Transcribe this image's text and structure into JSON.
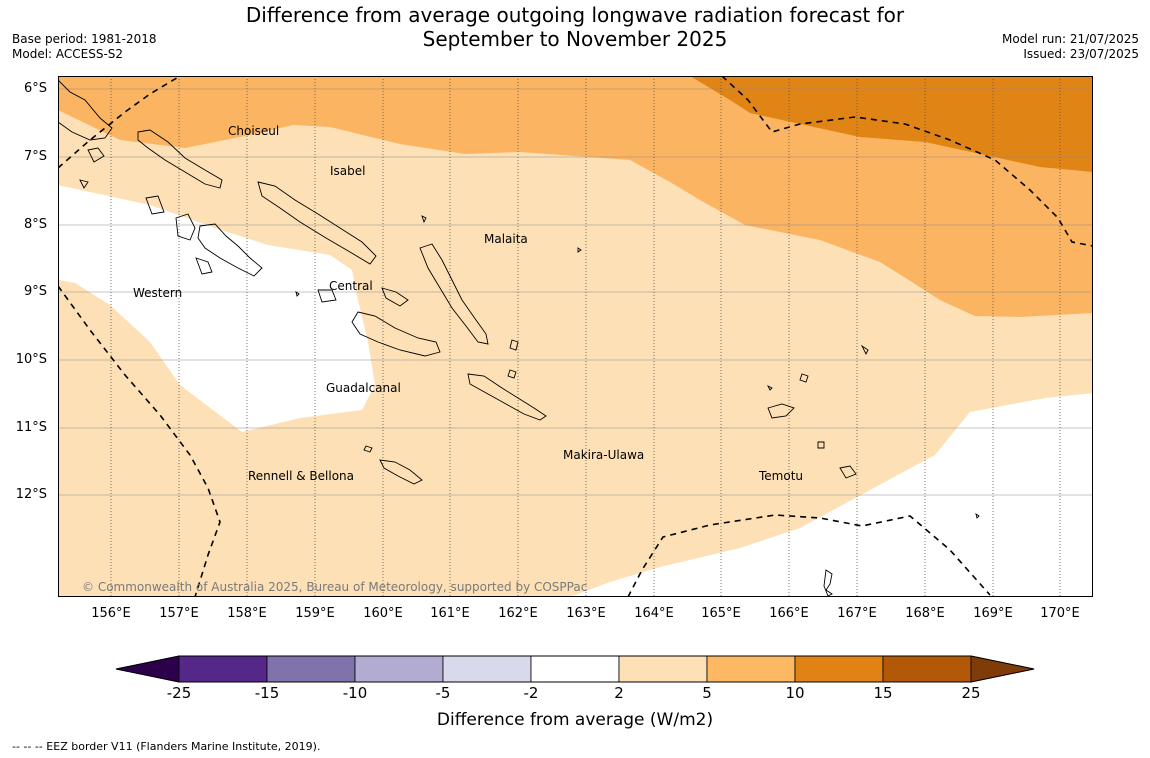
{
  "header": {
    "title_line1": "Difference from average outgoing longwave radiation forecast for",
    "title_line2": "September to November 2025",
    "base_period": "Base period: 1981-2018",
    "model": "Model: ACCESS-S2",
    "model_run": "Model run: 21/07/2025",
    "issued": "Issued: 23/07/2025"
  },
  "map": {
    "latitude_labels": [
      "6°S",
      "7°S",
      "8°S",
      "9°S",
      "10°S",
      "11°S",
      "12°S"
    ],
    "longitude_labels": [
      "156°E",
      "157°E",
      "158°E",
      "159°E",
      "160°E",
      "161°E",
      "162°E",
      "163°E",
      "164°E",
      "165°E",
      "166°E",
      "167°E",
      "168°E",
      "169°E",
      "170°E"
    ],
    "regions": [
      "Choiseul",
      "Isabel",
      "Malaita",
      "Western",
      "Central",
      "Guadalcanal",
      "Makira-Ulawa",
      "Rennell & Bellona",
      "Temotu"
    ],
    "copyright": "© Commonwealth of Australia 2025, Bureau of Meteorology, supported by COSPPac",
    "colors": {
      "band_2_5": "#fde0b5",
      "band_5_10": "#fbb462",
      "band_10_15": "#e08416",
      "neutral": "#ffffff"
    }
  },
  "colorbar": {
    "ticks": [
      "-25",
      "-15",
      "-10",
      "-5",
      "-2",
      "2",
      "5",
      "10",
      "15",
      "25"
    ],
    "colors": [
      "#2d004b",
      "#542788",
      "#8073ac",
      "#b2abd2",
      "#d8daeb",
      "#ffffff",
      "#fee0b6",
      "#fdb863",
      "#e08214",
      "#b35806",
      "#7f3b08"
    ],
    "label": "Difference from average (W/m2)"
  },
  "footer": {
    "eez_note": "--  --  -- EEZ border V11 (Flanders Marine Institute, 2019)."
  }
}
